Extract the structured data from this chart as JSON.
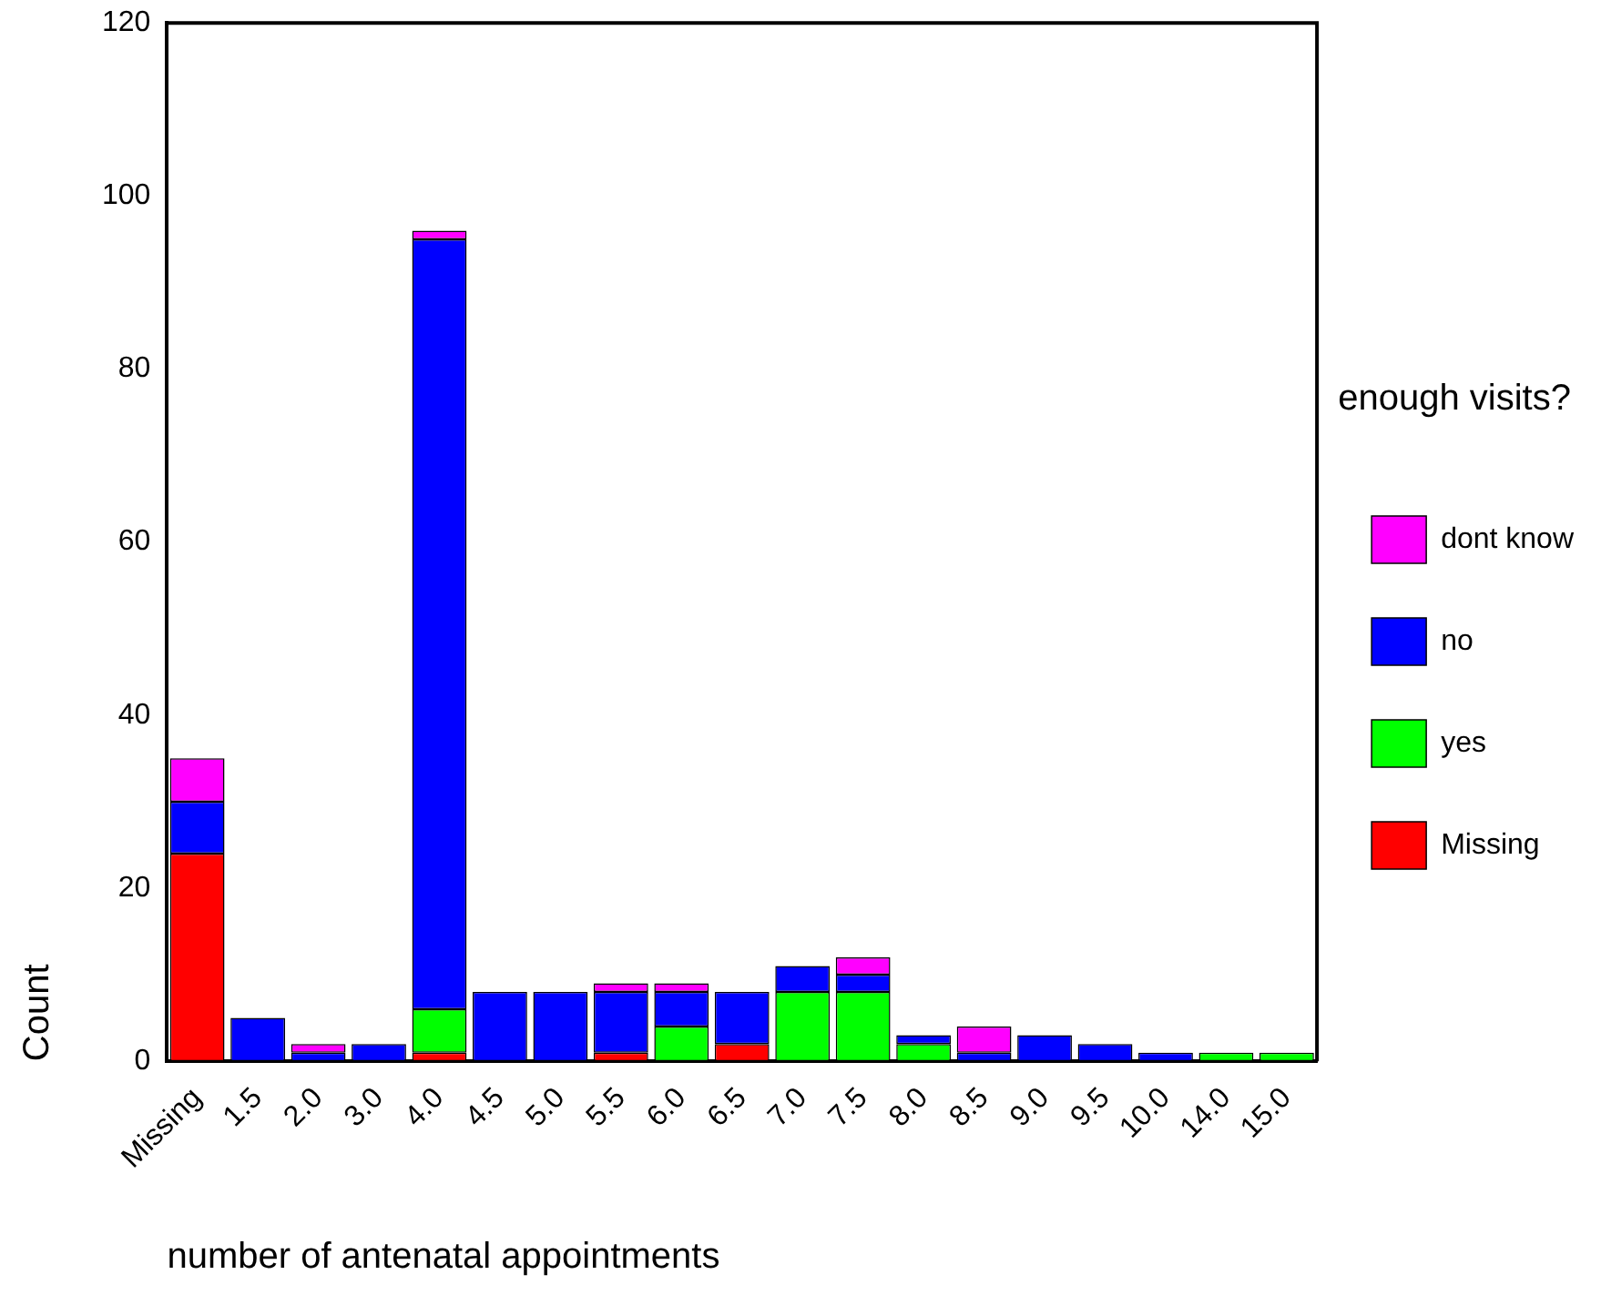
{
  "chart_data": {
    "type": "bar",
    "stacked": true,
    "xlabel": "number of antenatal appointments",
    "ylabel": "Count",
    "legend_title": "enough visits?",
    "legend": "right",
    "categories": [
      "Missing",
      "1.5",
      "2.0",
      "3.0",
      "4.0",
      "4.5",
      "5.0",
      "5.5",
      "6.0",
      "6.5",
      "7.0",
      "7.5",
      "8.0",
      "8.5",
      "9.0",
      "9.5",
      "10.0",
      "14.0",
      "15.0"
    ],
    "series": [
      {
        "name": "Missing",
        "color": "#ff0000",
        "values": [
          24,
          0,
          0,
          0,
          1,
          0,
          0,
          1,
          0,
          2,
          0,
          0,
          0,
          0,
          0,
          0,
          0,
          0,
          0
        ]
      },
      {
        "name": "yes",
        "color": "#00ff00",
        "values": [
          0,
          0,
          0,
          0,
          5,
          0,
          0,
          0,
          4,
          0,
          8,
          8,
          2,
          0,
          0,
          0,
          0,
          1,
          1
        ]
      },
      {
        "name": "no",
        "color": "#0000ff",
        "values": [
          6,
          5,
          1,
          2,
          89,
          8,
          8,
          7,
          4,
          6,
          3,
          2,
          1,
          1,
          3,
          2,
          1,
          0,
          0
        ]
      },
      {
        "name": "dont know",
        "color": "#ff00ff",
        "values": [
          5,
          0,
          1,
          0,
          1,
          0,
          0,
          1,
          1,
          0,
          0,
          2,
          0,
          3,
          0,
          0,
          0,
          0,
          0
        ]
      }
    ],
    "ylim": [
      0,
      120
    ],
    "yticks": [
      0,
      20,
      40,
      60,
      80,
      100,
      120
    ],
    "grid": false
  }
}
